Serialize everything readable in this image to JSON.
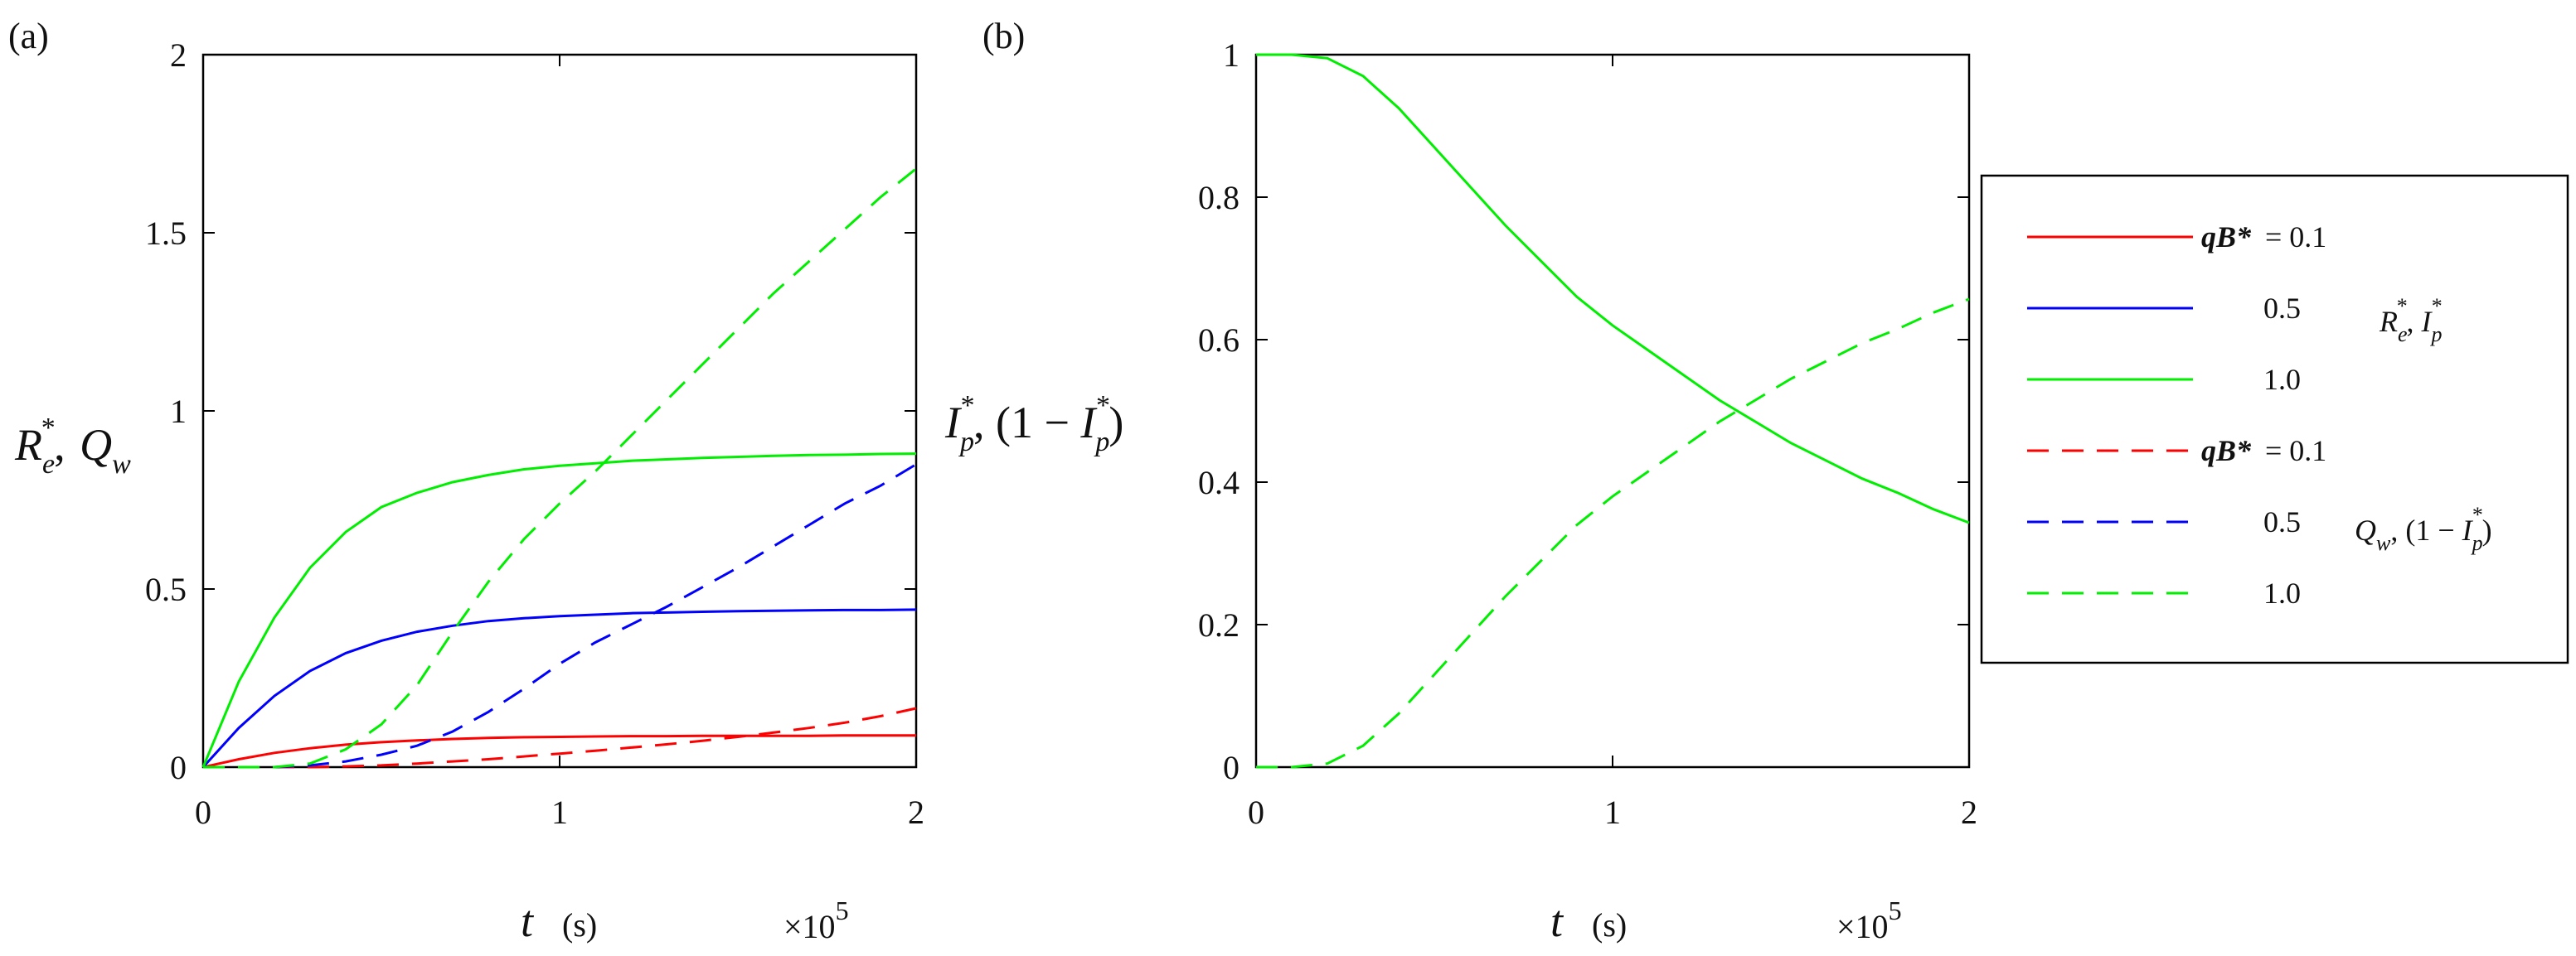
{
  "chart_data": [
    {
      "panel_label": "(a)",
      "type": "line",
      "x_range": [
        0,
        200000
      ],
      "ylim": [
        0,
        2
      ],
      "x_ticks": [
        "0",
        "1",
        "2"
      ],
      "y_ticks": [
        "0",
        "0.5",
        "1",
        "1.5",
        "2"
      ],
      "x_multiplier": "×10",
      "x_multiplier_exp": "5",
      "xlabel": "t",
      "xlabel_unit": "(s)",
      "ylabel": "R*e,  Qw",
      "x": [
        0,
        10000,
        20000,
        30000,
        40000,
        50000,
        60000,
        70000,
        80000,
        90000,
        100000,
        110000,
        120000,
        130000,
        140000,
        150000,
        160000,
        170000,
        180000,
        190000,
        200000
      ],
      "series": [
        {
          "name": "R*e, qB* = 0.1",
          "color": "#ff0000",
          "dash": "solid",
          "values": [
            0,
            0.022,
            0.04,
            0.053,
            0.063,
            0.07,
            0.075,
            0.079,
            0.082,
            0.084,
            0.085,
            0.086,
            0.087,
            0.087,
            0.088,
            0.088,
            0.088,
            0.088,
            0.089,
            0.089,
            0.089
          ]
        },
        {
          "name": "R*e, qB* = 0.5",
          "color": "#0000ff",
          "dash": "solid",
          "values": [
            0,
            0.11,
            0.2,
            0.27,
            0.32,
            0.355,
            0.38,
            0.397,
            0.41,
            0.418,
            0.424,
            0.428,
            0.432,
            0.434,
            0.436,
            0.438,
            0.439,
            0.44,
            0.441,
            0.441,
            0.442
          ]
        },
        {
          "name": "R*e, qB* = 1.0",
          "color": "#00ee00",
          "dash": "solid",
          "values": [
            0,
            0.24,
            0.42,
            0.56,
            0.66,
            0.73,
            0.77,
            0.8,
            0.82,
            0.836,
            0.846,
            0.853,
            0.86,
            0.864,
            0.868,
            0.871,
            0.874,
            0.876,
            0.877,
            0.879,
            0.88
          ]
        },
        {
          "name": "Qw, qB* = 0.1",
          "color": "#ff0000",
          "dash": "dashed",
          "values": [
            0,
            0,
            0,
            0,
            0.002,
            0.005,
            0.01,
            0.016,
            0.022,
            0.03,
            0.038,
            0.046,
            0.055,
            0.064,
            0.074,
            0.085,
            0.097,
            0.11,
            0.125,
            0.143,
            0.165
          ]
        },
        {
          "name": "Qw, qB* = 0.5",
          "color": "#0000ff",
          "dash": "dashed",
          "values": [
            0,
            0,
            0,
            0.005,
            0.016,
            0.035,
            0.06,
            0.1,
            0.155,
            0.22,
            0.29,
            0.35,
            0.4,
            0.45,
            0.505,
            0.56,
            0.62,
            0.68,
            0.74,
            0.79,
            0.85
          ]
        },
        {
          "name": "Qw, qB* = 1.0",
          "color": "#00ee00",
          "dash": "dashed",
          "values": [
            0,
            0,
            0,
            0.01,
            0.05,
            0.12,
            0.23,
            0.38,
            0.52,
            0.64,
            0.74,
            0.83,
            0.93,
            1.03,
            1.13,
            1.23,
            1.33,
            1.42,
            1.51,
            1.6,
            1.68
          ]
        }
      ]
    },
    {
      "panel_label": "(b)",
      "type": "line",
      "x_range": [
        0,
        200000
      ],
      "ylim": [
        0,
        1
      ],
      "x_ticks": [
        "0",
        "1",
        "2"
      ],
      "y_ticks": [
        "0",
        "0.2",
        "0.4",
        "0.6",
        "0.8",
        "1"
      ],
      "x_multiplier": "×10",
      "x_multiplier_exp": "5",
      "xlabel": "t",
      "xlabel_unit": "(s)",
      "ylabel": "I*p,  (1 − I*p)",
      "x": [
        0,
        10000,
        20000,
        30000,
        40000,
        50000,
        60000,
        70000,
        80000,
        90000,
        100000,
        110000,
        120000,
        130000,
        140000,
        150000,
        160000,
        170000,
        180000,
        190000,
        200000
      ],
      "series": [
        {
          "name": "I*p, qB* = 1.0",
          "color": "#00ee00",
          "dash": "solid",
          "values": [
            1,
            1,
            0.995,
            0.97,
            0.925,
            0.87,
            0.815,
            0.76,
            0.71,
            0.66,
            0.62,
            0.585,
            0.55,
            0.515,
            0.485,
            0.455,
            0.43,
            0.405,
            0.385,
            0.362,
            0.343
          ]
        },
        {
          "name": "(1 − I*p), qB* = 1.0",
          "color": "#00ee00",
          "dash": "dashed",
          "values": [
            0,
            0,
            0.005,
            0.03,
            0.075,
            0.13,
            0.185,
            0.24,
            0.29,
            0.34,
            0.38,
            0.415,
            0.45,
            0.485,
            0.515,
            0.545,
            0.57,
            0.595,
            0.615,
            0.638,
            0.657
          ]
        }
      ]
    }
  ],
  "legend": {
    "entries": [
      {
        "color": "#ff0000",
        "dash": "solid",
        "q_label": "qB*",
        "value": "= 0.1"
      },
      {
        "color": "#0000ff",
        "dash": "solid",
        "q_label": "",
        "value": "0.5"
      },
      {
        "color": "#00ee00",
        "dash": "solid",
        "q_label": "",
        "value": "1.0"
      },
      {
        "color": "#ff0000",
        "dash": "dashed",
        "q_label": "qB*",
        "value": "= 0.1"
      },
      {
        "color": "#0000ff",
        "dash": "dashed",
        "q_label": "",
        "value": "0.5"
      },
      {
        "color": "#00ee00",
        "dash": "dashed",
        "q_label": "",
        "value": "1.0"
      }
    ],
    "group_solid_label": "R*e, I*p",
    "group_dashed_label": "Qw, (1 − I*p)"
  }
}
